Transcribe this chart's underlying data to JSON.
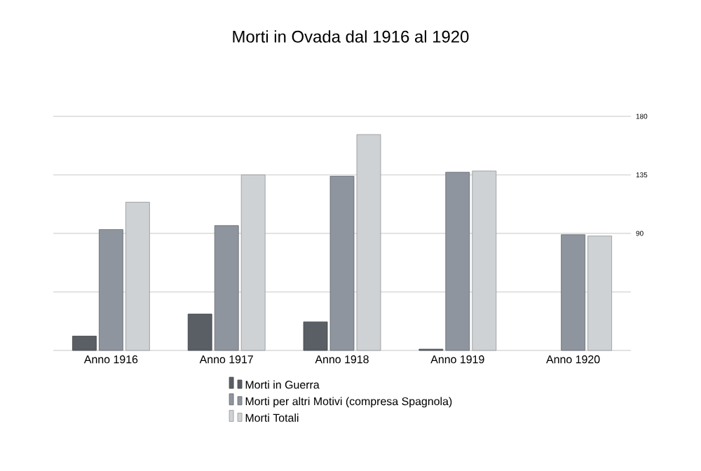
{
  "chart_data": {
    "type": "bar",
    "title": "Morti in Ovada dal 1916 al 1920",
    "categories": [
      "Anno 1916",
      "Anno 1917",
      "Anno 1918",
      "Anno 1919",
      "Anno 1920"
    ],
    "series": [
      {
        "name": "Morti in Guerra",
        "color": "#5a5f66",
        "values": [
          11,
          28,
          22,
          1,
          null
        ]
      },
      {
        "name": "Morti per altri Motivi (compresa Spagnola)",
        "color": "#8e959e",
        "values": [
          93,
          96,
          134,
          137,
          89
        ]
      },
      {
        "name": "Morti Totali",
        "color": "#cfd2d5",
        "values": [
          114,
          135,
          166,
          138,
          88
        ]
      }
    ],
    "ylim": [
      0,
      180
    ],
    "yticks": [
      {
        "value": 0,
        "label": null
      },
      {
        "value": 45,
        "label": null
      },
      90,
      135,
      180
    ],
    "grid": "y",
    "legend": "bottom"
  }
}
